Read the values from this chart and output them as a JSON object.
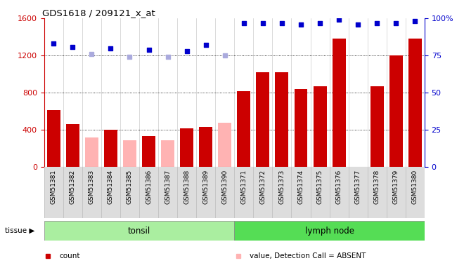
{
  "title": "GDS1618 / 209121_x_at",
  "samples": [
    "GSM51381",
    "GSM51382",
    "GSM51383",
    "GSM51384",
    "GSM51385",
    "GSM51386",
    "GSM51387",
    "GSM51388",
    "GSM51389",
    "GSM51390",
    "GSM51371",
    "GSM51372",
    "GSM51373",
    "GSM51374",
    "GSM51375",
    "GSM51376",
    "GSM51377",
    "GSM51378",
    "GSM51379",
    "GSM51380"
  ],
  "count_values": [
    610,
    460,
    null,
    400,
    null,
    330,
    null,
    420,
    430,
    null,
    820,
    1020,
    1020,
    840,
    870,
    1380,
    null,
    870,
    1200,
    1380
  ],
  "absent_values": [
    null,
    null,
    320,
    null,
    290,
    null,
    290,
    null,
    null,
    480,
    null,
    null,
    null,
    null,
    null,
    null,
    null,
    null,
    null,
    null
  ],
  "rank_pct": [
    83,
    81,
    null,
    80,
    null,
    79,
    null,
    78,
    82,
    null,
    97,
    97,
    97,
    96,
    97,
    99,
    96,
    97,
    97,
    98
  ],
  "absent_rank_pct": [
    null,
    null,
    76,
    null,
    74,
    null,
    74,
    null,
    null,
    75,
    null,
    null,
    null,
    null,
    null,
    null,
    null,
    null,
    null,
    null
  ],
  "bar_color_present": "#cc0000",
  "bar_color_absent": "#ffb3b3",
  "rank_color_present": "#0000cc",
  "rank_color_absent": "#aaaadd",
  "tonsil_color": "#aaeea0",
  "lymph_color": "#55dd55",
  "ylim_left": [
    0,
    1600
  ],
  "ylim_right": [
    0,
    100
  ],
  "yticks_left": [
    0,
    400,
    800,
    1200,
    1600
  ],
  "yticks_right": [
    0,
    25,
    50,
    75,
    100
  ]
}
